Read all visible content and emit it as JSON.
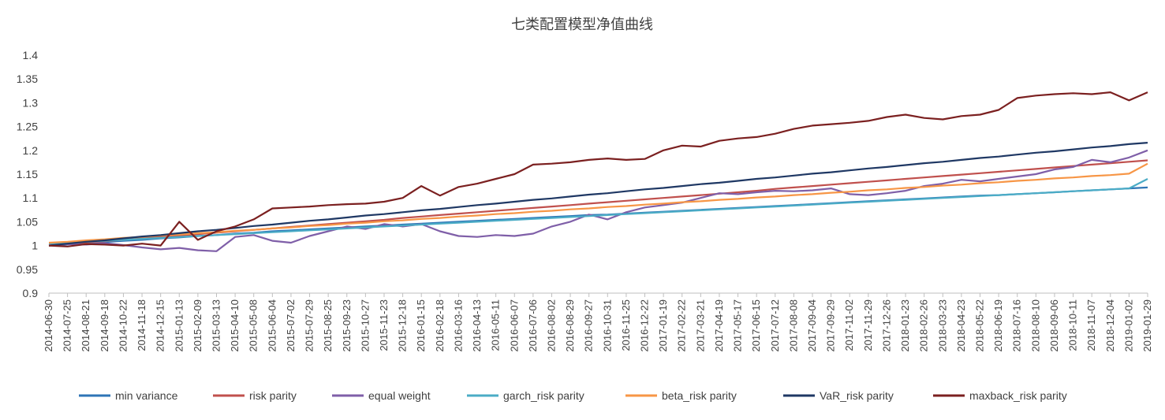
{
  "chart_data": {
    "type": "line",
    "title": "七类配置模型净值曲线",
    "xlabel": "",
    "ylabel": "",
    "ylim": [
      0.9,
      1.4
    ],
    "yticks": [
      "0.9",
      "0.95",
      "1",
      "1.05",
      "1.1",
      "1.15",
      "1.2",
      "1.25",
      "1.3",
      "1.35",
      "1.4"
    ],
    "grid": false,
    "legend_position": "bottom",
    "x_labels": [
      "2014-06-30",
      "2014-07-25",
      "2014-08-21",
      "2014-09-18",
      "2014-10-22",
      "2014-11-18",
      "2014-12-15",
      "2015-01-13",
      "2015-02-09",
      "2015-03-13",
      "2015-04-10",
      "2015-05-08",
      "2015-06-04",
      "2015-07-02",
      "2015-07-29",
      "2015-08-25",
      "2015-09-23",
      "2015-10-27",
      "2015-11-23",
      "2015-12-18",
      "2016-01-15",
      "2016-02-18",
      "2016-03-16",
      "2016-04-13",
      "2016-05-11",
      "2016-06-07",
      "2016-07-06",
      "2016-08-02",
      "2016-08-29",
      "2016-09-27",
      "2016-10-31",
      "2016-11-25",
      "2016-12-22",
      "2017-01-19",
      "2017-02-22",
      "2017-03-21",
      "2017-04-19",
      "2017-05-17",
      "2017-06-15",
      "2017-07-12",
      "2017-08-08",
      "2017-09-04",
      "2017-09-29",
      "2017-11-02",
      "2017-11-29",
      "2017-12-26",
      "2018-01-23",
      "2018-02-26",
      "2018-03-23",
      "2018-04-23",
      "2018-05-22",
      "2018-06-19",
      "2018-07-16",
      "2018-08-10",
      "2018-09-06",
      "2018-10-11",
      "2018-11-07",
      "2018-12-04",
      "2019-01-02",
      "2019-01-29"
    ],
    "series": [
      {
        "name": "min variance",
        "color": "#2E75B6",
        "values": [
          1.0,
          1.0025,
          1.005,
          1.0075,
          1.01,
          1.012,
          1.015,
          1.017,
          1.02,
          1.022,
          1.025,
          1.027,
          1.03,
          1.032,
          1.034,
          1.036,
          1.038,
          1.04,
          1.042,
          1.044,
          1.046,
          1.048,
          1.05,
          1.052,
          1.054,
          1.056,
          1.058,
          1.06,
          1.062,
          1.064,
          1.065,
          1.067,
          1.069,
          1.071,
          1.073,
          1.075,
          1.077,
          1.079,
          1.081,
          1.083,
          1.085,
          1.087,
          1.089,
          1.091,
          1.093,
          1.095,
          1.097,
          1.099,
          1.101,
          1.103,
          1.105,
          1.106,
          1.108,
          1.11,
          1.112,
          1.114,
          1.116,
          1.118,
          1.12,
          1.122
        ]
      },
      {
        "name": "risk parity",
        "color": "#C0504D",
        "values": [
          1.0,
          1.003,
          1.006,
          1.009,
          1.012,
          1.015,
          1.018,
          1.021,
          1.024,
          1.027,
          1.03,
          1.033,
          1.036,
          1.039,
          1.042,
          1.045,
          1.048,
          1.051,
          1.054,
          1.058,
          1.061,
          1.064,
          1.067,
          1.07,
          1.073,
          1.076,
          1.079,
          1.082,
          1.085,
          1.088,
          1.091,
          1.094,
          1.097,
          1.1,
          1.103,
          1.106,
          1.109,
          1.112,
          1.115,
          1.119,
          1.122,
          1.125,
          1.128,
          1.131,
          1.134,
          1.137,
          1.14,
          1.143,
          1.146,
          1.149,
          1.152,
          1.155,
          1.158,
          1.161,
          1.164,
          1.167,
          1.17,
          1.173,
          1.176,
          1.179
        ]
      },
      {
        "name": "equal weight",
        "color": "#7F5FA8",
        "values": [
          1.0,
          1.003,
          1.002,
          1.005,
          1.001,
          0.996,
          0.992,
          0.995,
          0.99,
          0.988,
          1.018,
          1.022,
          1.01,
          1.006,
          1.02,
          1.03,
          1.04,
          1.035,
          1.045,
          1.04,
          1.045,
          1.03,
          1.02,
          1.018,
          1.022,
          1.02,
          1.025,
          1.04,
          1.05,
          1.065,
          1.055,
          1.07,
          1.08,
          1.085,
          1.09,
          1.1,
          1.11,
          1.108,
          1.112,
          1.115,
          1.114,
          1.116,
          1.12,
          1.108,
          1.106,
          1.11,
          1.115,
          1.125,
          1.13,
          1.138,
          1.135,
          1.14,
          1.145,
          1.15,
          1.16,
          1.165,
          1.18,
          1.175,
          1.185,
          1.2
        ]
      },
      {
        "name": "garch_risk parity",
        "color": "#4BACC6",
        "values": [
          1.004,
          1.006,
          1.008,
          1.01,
          1.012,
          1.014,
          1.016,
          1.018,
          1.02,
          1.022,
          1.024,
          1.026,
          1.028,
          1.03,
          1.032,
          1.034,
          1.036,
          1.038,
          1.04,
          1.042,
          1.044,
          1.046,
          1.048,
          1.05,
          1.052,
          1.054,
          1.056,
          1.058,
          1.06,
          1.062,
          1.064,
          1.066,
          1.068,
          1.07,
          1.072,
          1.074,
          1.076,
          1.078,
          1.08,
          1.082,
          1.084,
          1.086,
          1.088,
          1.09,
          1.092,
          1.094,
          1.096,
          1.098,
          1.1,
          1.102,
          1.104,
          1.106,
          1.108,
          1.11,
          1.112,
          1.114,
          1.116,
          1.118,
          1.12,
          1.14
        ]
      },
      {
        "name": "beta_risk parity",
        "color": "#F79646",
        "values": [
          1.006,
          1.008,
          1.011,
          1.013,
          1.016,
          1.018,
          1.021,
          1.023,
          1.026,
          1.028,
          1.031,
          1.033,
          1.036,
          1.038,
          1.041,
          1.043,
          1.046,
          1.048,
          1.051,
          1.053,
          1.056,
          1.058,
          1.061,
          1.063,
          1.066,
          1.068,
          1.071,
          1.073,
          1.076,
          1.078,
          1.081,
          1.083,
          1.086,
          1.088,
          1.091,
          1.093,
          1.096,
          1.098,
          1.101,
          1.103,
          1.106,
          1.108,
          1.111,
          1.113,
          1.116,
          1.118,
          1.121,
          1.123,
          1.126,
          1.128,
          1.131,
          1.133,
          1.136,
          1.138,
          1.141,
          1.143,
          1.146,
          1.148,
          1.151,
          1.172
        ]
      },
      {
        "name": "VaR_risk parity",
        "color": "#1F3864",
        "values": [
          1.0,
          1.004,
          1.008,
          1.011,
          1.015,
          1.019,
          1.022,
          1.026,
          1.03,
          1.033,
          1.037,
          1.041,
          1.044,
          1.048,
          1.052,
          1.055,
          1.059,
          1.063,
          1.066,
          1.07,
          1.074,
          1.077,
          1.081,
          1.085,
          1.088,
          1.092,
          1.096,
          1.099,
          1.103,
          1.107,
          1.11,
          1.114,
          1.118,
          1.121,
          1.125,
          1.129,
          1.132,
          1.136,
          1.14,
          1.143,
          1.147,
          1.151,
          1.154,
          1.158,
          1.162,
          1.165,
          1.169,
          1.173,
          1.176,
          1.18,
          1.184,
          1.187,
          1.191,
          1.195,
          1.198,
          1.202,
          1.206,
          1.209,
          1.213,
          1.216
        ]
      },
      {
        "name": "maxback_risk parity",
        "color": "#7B2020",
        "values": [
          1.0,
          0.998,
          1.003,
          1.002,
          1.0,
          1.004,
          1.0,
          1.05,
          1.012,
          1.03,
          1.04,
          1.055,
          1.078,
          1.08,
          1.082,
          1.085,
          1.087,
          1.088,
          1.092,
          1.1,
          1.125,
          1.105,
          1.123,
          1.13,
          1.14,
          1.15,
          1.17,
          1.172,
          1.175,
          1.18,
          1.183,
          1.18,
          1.182,
          1.2,
          1.21,
          1.208,
          1.22,
          1.225,
          1.228,
          1.235,
          1.245,
          1.252,
          1.255,
          1.258,
          1.262,
          1.27,
          1.275,
          1.268,
          1.265,
          1.272,
          1.275,
          1.285,
          1.31,
          1.315,
          1.318,
          1.32,
          1.318,
          1.322,
          1.305,
          1.322
        ]
      }
    ]
  }
}
